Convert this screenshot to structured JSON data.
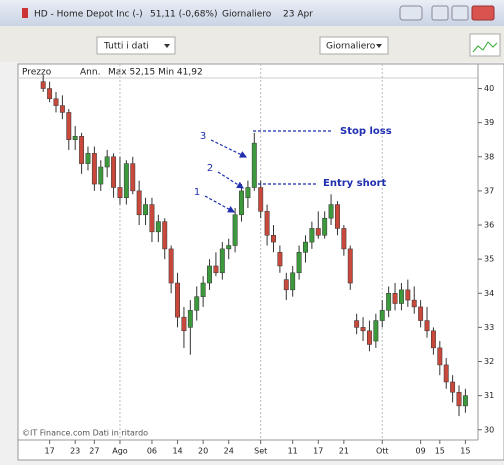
{
  "window": {
    "title": "HD - Home Depot Inc (-)",
    "price": "51,11 (-0,68%)",
    "period": "Giornaliero",
    "date": "23 Apr"
  },
  "toolbar": {
    "range": "Tutti i dati",
    "interval": "Giornaliero"
  },
  "chart_header": {
    "series": "Prezzo",
    "notes": "Ann.",
    "range": "Max 52,15 Min 41,92"
  },
  "footer": "©IT Finance.com  Dati in ritardo",
  "chart_data": {
    "type": "candlestick",
    "open": [
      40.2,
      40.0,
      39.7,
      39.5,
      39.3,
      38.5,
      38.6,
      37.8,
      38.1,
      37.2,
      37.7,
      38.0,
      37.1,
      36.8,
      37.8,
      37.0,
      36.3,
      36.6,
      35.8,
      36.1,
      35.3,
      34.3,
      33.3,
      33.0,
      33.5,
      33.9,
      34.3,
      34.8,
      34.6,
      35.3,
      35.4,
      36.3,
      36.8,
      37.1,
      37.1,
      36.4,
      35.7,
      35.2,
      34.4,
      34.1,
      34.6,
      35.2,
      35.5,
      35.9,
      35.7,
      36.2,
      36.6,
      35.9,
      35.3,
      33.2,
      33.0,
      32.9,
      32.6,
      33.2,
      33.5,
      34.0,
      33.7,
      34.1,
      33.8,
      33.6,
      33.2,
      32.9,
      32.4,
      31.9,
      31.4,
      31.1,
      30.7
    ],
    "high": [
      40.4,
      40.2,
      39.9,
      39.8,
      39.4,
      38.9,
      38.7,
      38.3,
      38.3,
      37.9,
      38.2,
      38.1,
      38.0,
      37.9,
      38.0,
      37.3,
      36.8,
      36.8,
      36.3,
      36.2,
      35.4,
      34.6,
      33.6,
      33.8,
      34.2,
      34.5,
      35.0,
      35.2,
      35.5,
      35.6,
      36.5,
      37.2,
      37.3,
      38.7,
      37.3,
      36.6,
      36.0,
      35.4,
      34.6,
      34.8,
      35.4,
      35.7,
      36.1,
      36.4,
      36.4,
      36.9,
      36.7,
      36.0,
      35.4,
      33.4,
      33.3,
      33.2,
      33.4,
      33.8,
      34.2,
      34.3,
      34.3,
      34.4,
      34.2,
      33.8,
      33.6,
      33.0,
      32.6,
      32.1,
      31.6,
      31.3,
      31.2
    ],
    "low": [
      39.9,
      39.6,
      39.3,
      39.1,
      38.2,
      38.2,
      37.5,
      37.6,
      37.0,
      37.0,
      37.4,
      36.8,
      36.6,
      36.6,
      36.9,
      36.0,
      36.0,
      35.5,
      35.5,
      35.0,
      34.0,
      33.0,
      32.4,
      32.2,
      33.2,
      33.6,
      34.1,
      34.5,
      34.4,
      35.0,
      35.2,
      36.1,
      36.5,
      37.0,
      36.2,
      35.4,
      35.2,
      34.6,
      33.8,
      33.9,
      34.4,
      34.9,
      35.3,
      35.6,
      35.6,
      36.0,
      35.7,
      35.1,
      34.1,
      32.8,
      32.6,
      32.3,
      32.4,
      33.0,
      33.3,
      33.5,
      33.5,
      33.6,
      33.4,
      33.0,
      32.7,
      32.2,
      31.6,
      31.2,
      30.8,
      30.4,
      30.5
    ],
    "close": [
      40.0,
      39.7,
      39.5,
      39.3,
      38.5,
      38.6,
      37.8,
      38.1,
      37.2,
      37.7,
      38.0,
      37.1,
      36.8,
      37.8,
      37.0,
      36.3,
      36.6,
      35.8,
      36.1,
      35.3,
      34.3,
      33.3,
      32.9,
      33.5,
      33.9,
      34.3,
      34.8,
      34.6,
      35.3,
      35.4,
      36.3,
      37.0,
      37.1,
      38.4,
      36.4,
      35.7,
      35.5,
      34.8,
      34.1,
      34.6,
      35.2,
      35.5,
      35.9,
      35.7,
      36.2,
      36.6,
      35.9,
      35.3,
      34.3,
      33.0,
      32.9,
      32.5,
      33.2,
      33.5,
      34.0,
      33.7,
      34.1,
      33.8,
      33.6,
      33.2,
      32.9,
      32.4,
      31.9,
      31.4,
      31.1,
      30.7,
      31.0
    ],
    "up_color": "#3c9a3c",
    "down_color": "#c8483c",
    "ylim": [
      29.7,
      40.25
    ],
    "yticks": [
      30,
      31,
      32,
      33,
      34,
      35,
      36,
      37,
      38,
      39,
      40
    ],
    "xlim": [
      -0.5,
      67.5
    ],
    "xticks": [
      {
        "value": 1,
        "label": "17"
      },
      {
        "value": 5,
        "label": "23"
      },
      {
        "value": 8,
        "label": "27"
      },
      {
        "value": 12,
        "label": "Ago"
      },
      {
        "value": 17,
        "label": "06"
      },
      {
        "value": 21,
        "label": "14"
      },
      {
        "value": 25,
        "label": "20"
      },
      {
        "value": 29,
        "label": "24"
      },
      {
        "value": 34,
        "label": "Set"
      },
      {
        "value": 39,
        "label": "11"
      },
      {
        "value": 43,
        "label": "17"
      },
      {
        "value": 47,
        "label": "21"
      },
      {
        "value": 53,
        "label": "Ott"
      },
      {
        "value": 59,
        "label": "09"
      },
      {
        "value": 62,
        "label": "15"
      },
      {
        "value": 66,
        "label": "15"
      }
    ],
    "annotations": [
      "Stop loss",
      "Entry short",
      "1",
      "2",
      "3"
    ],
    "annotation_color": "#1f2fb0"
  }
}
